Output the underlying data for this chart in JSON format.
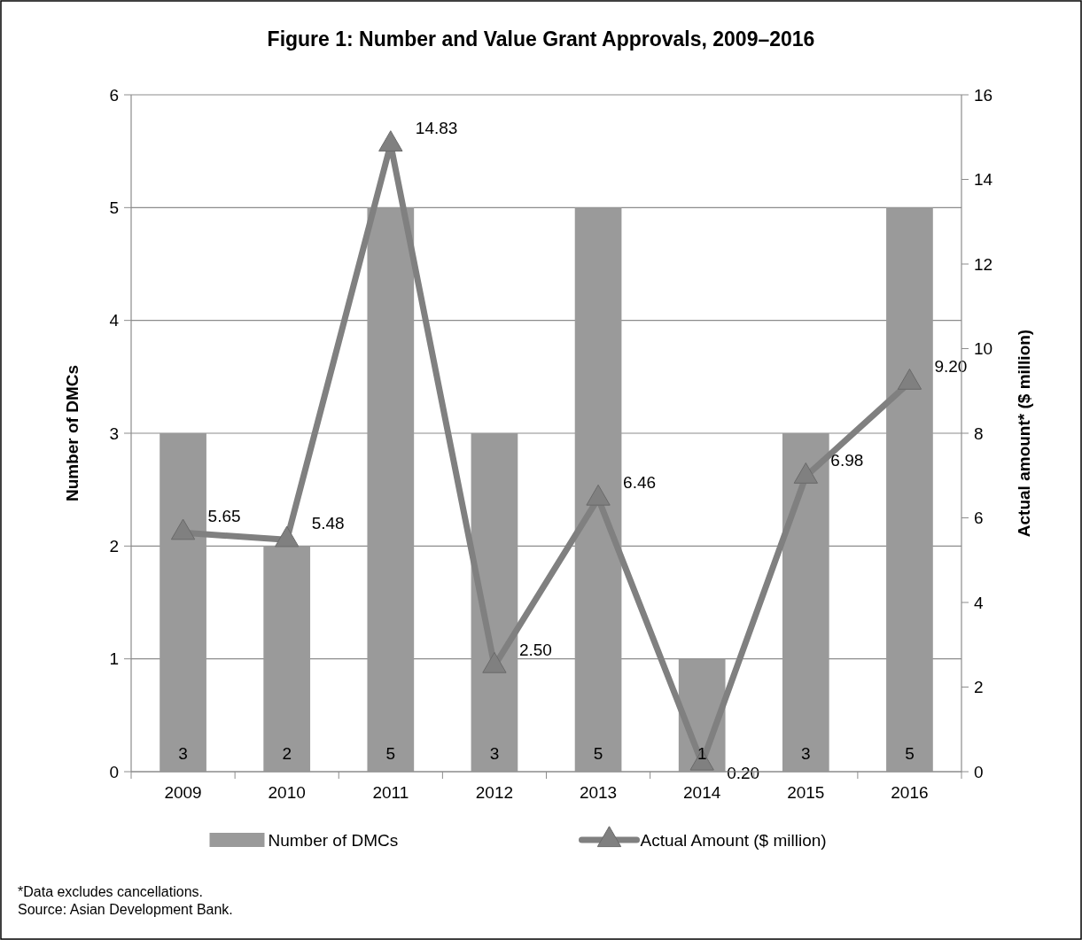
{
  "chart_data": {
    "type": "bar",
    "title": "Figure 1: Number and Value Grant Approvals, 2009–2016",
    "ylabel": "Number of DMCs",
    "y2label": "Actual amount* ($ million)",
    "categories": [
      "2009",
      "2010",
      "2011",
      "2012",
      "2013",
      "2014",
      "2015",
      "2016"
    ],
    "series": [
      {
        "name": "Number of DMCs",
        "color": "#9a9a9a",
        "values": [
          3,
          2,
          5,
          3,
          5,
          1,
          3,
          5
        ],
        "value_labels": [
          "3",
          "2",
          "5",
          "3",
          "5",
          "1",
          "3",
          "5"
        ]
      },
      {
        "name": "Actual Amount ($ million)",
        "type": "line",
        "axis": "y2",
        "color": "#808080",
        "marker": "triangle",
        "values": [
          5.65,
          5.48,
          14.83,
          2.5,
          6.46,
          0.2,
          6.98,
          9.2
        ],
        "value_labels": [
          "5.65",
          "5.48",
          "14.83",
          "2.50",
          "6.46",
          "0.20",
          "6.98",
          "9.20"
        ]
      }
    ],
    "ylim": [
      0,
      6
    ],
    "yticks": [
      0,
      1,
      2,
      3,
      4,
      5,
      6
    ],
    "y2lim": [
      0,
      16
    ],
    "y2ticks": [
      0,
      2,
      4,
      6,
      8,
      10,
      12,
      14,
      16
    ],
    "grid": "y",
    "legend": "bottom",
    "annotations": [
      "*Data excludes cancellations.",
      "Source: Asian Development Bank."
    ]
  }
}
